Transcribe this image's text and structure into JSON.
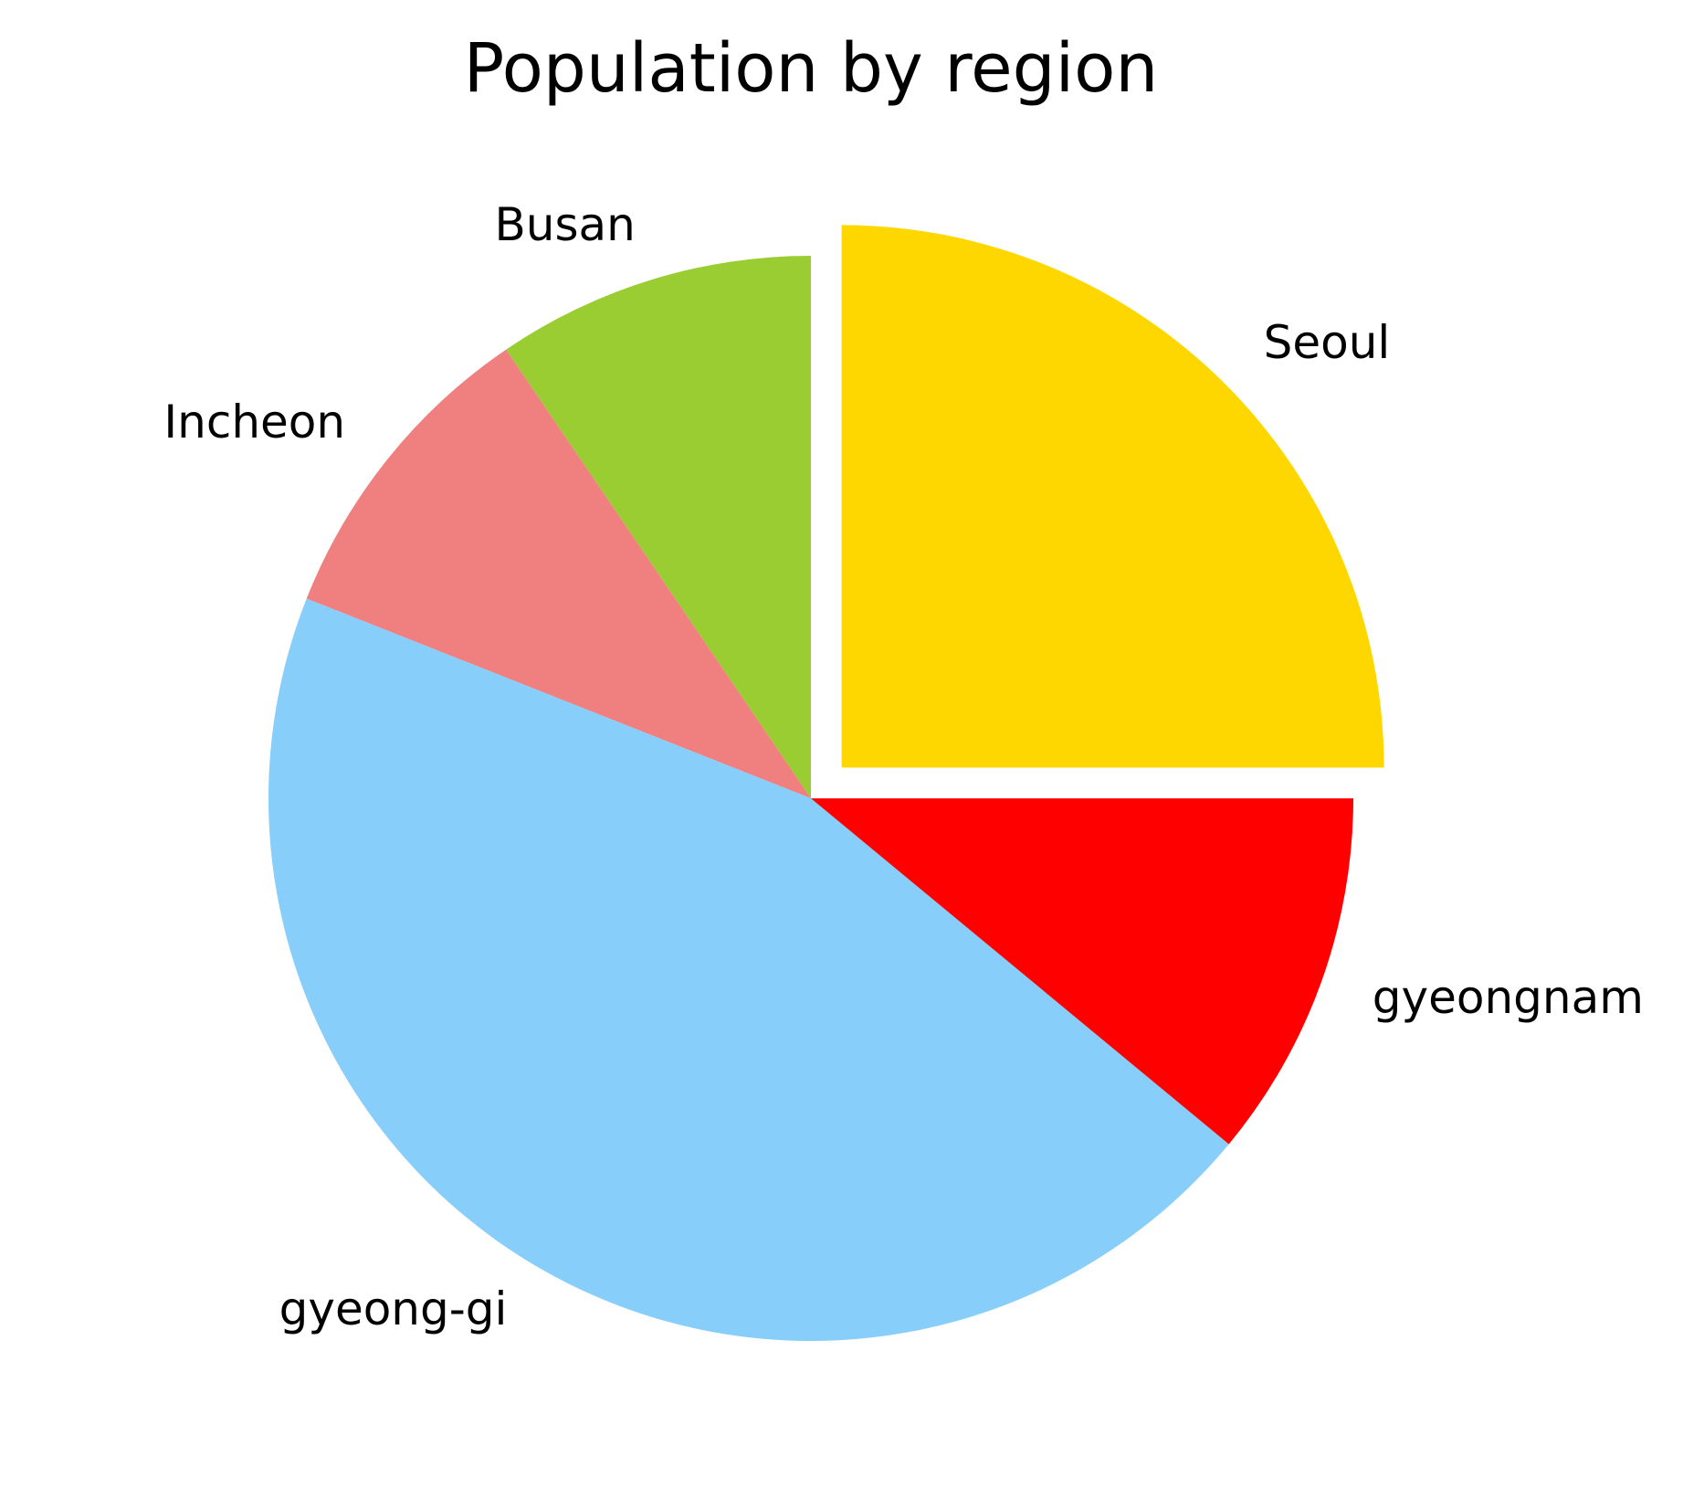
{
  "chart_data": {
    "type": "pie",
    "title": "Population by region",
    "slices": [
      {
        "label": "Seoul",
        "value": 25.0,
        "color": "#FFD700",
        "exploded": true
      },
      {
        "label": "Busan",
        "value": 9.5,
        "color": "#9ACD32",
        "exploded": false
      },
      {
        "label": "Incheon",
        "value": 9.5,
        "color": "#F08080",
        "exploded": false
      },
      {
        "label": "gyeong-gi",
        "value": 45.0,
        "color": "#87CEFA",
        "exploded": false
      },
      {
        "label": "gyeongnam",
        "value": 11.0,
        "color": "#FF0000",
        "exploded": false
      }
    ],
    "start_angle": 0,
    "direction": "counterclockwise",
    "legend": false
  }
}
